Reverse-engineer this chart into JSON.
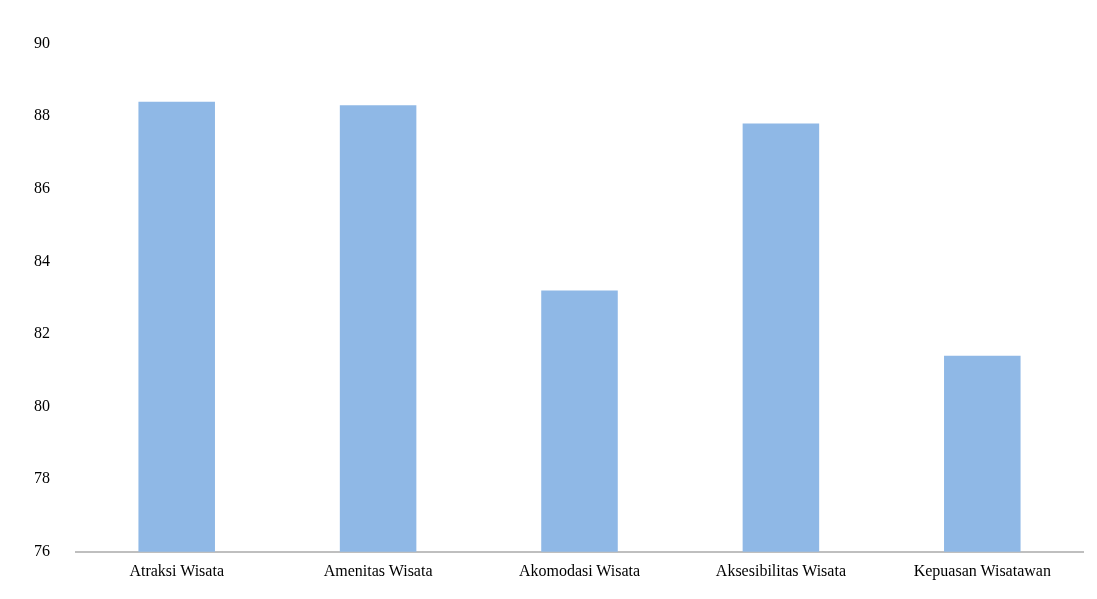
{
  "chart_data": {
    "type": "bar",
    "categories": [
      "Atraksi Wisata",
      "Amenitas Wisata",
      "Akomodasi Wisata",
      "Aksesibilitas Wisata",
      "Kepuasan Wisatawan"
    ],
    "values": [
      88.4,
      88.3,
      83.2,
      87.8,
      81.4
    ],
    "color": "#8fb8e6",
    "ylim": [
      76,
      90
    ],
    "yticks": [
      76,
      78,
      80,
      82,
      84,
      86,
      88,
      90
    ],
    "grid": false,
    "legend": false
  }
}
